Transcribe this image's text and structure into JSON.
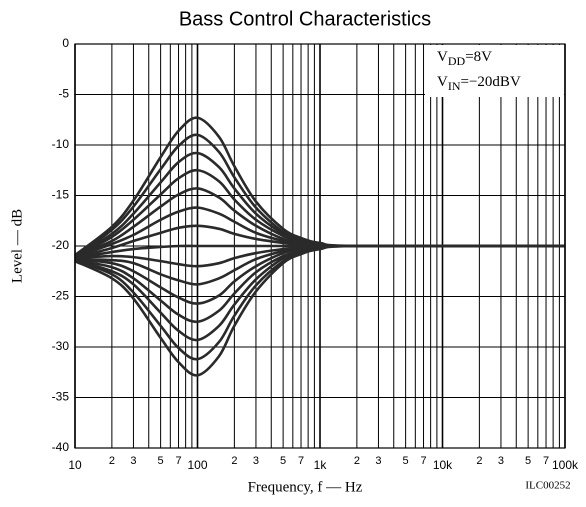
{
  "chart_data": {
    "type": "line",
    "title": "Bass Control Characteristics",
    "xlabel": "Frequency, f — Hz",
    "ylabel": "Level — dB",
    "figure_id": "ILC00252",
    "annotations": [
      [
        "V",
        "DD",
        "=8V"
      ],
      [
        "V",
        "IN",
        "=−20dBV"
      ]
    ],
    "xscale": "log",
    "xlim": [
      10,
      100000
    ],
    "ylim": [
      -40,
      0
    ],
    "xticks": [
      10,
      {
        "value": 20,
        "label": "2"
      },
      {
        "value": 30,
        "label": "3"
      },
      {
        "value": 50,
        "label": "5"
      },
      {
        "value": 70,
        "label": "7"
      },
      100,
      {
        "value": 200,
        "label": "2"
      },
      {
        "value": 300,
        "label": "3"
      },
      {
        "value": 500,
        "label": "5"
      },
      {
        "value": 700,
        "label": "7"
      },
      {
        "value": 1000,
        "label": "1k"
      },
      {
        "value": 2000,
        "label": "2"
      },
      {
        "value": 3000,
        "label": "3"
      },
      {
        "value": 5000,
        "label": "5"
      },
      {
        "value": 7000,
        "label": "7"
      },
      {
        "value": 10000,
        "label": "10k"
      },
      {
        "value": 20000,
        "label": "2"
      },
      {
        "value": 30000,
        "label": "3"
      },
      {
        "value": 50000,
        "label": "5"
      },
      {
        "value": 70000,
        "label": "7"
      },
      {
        "value": 100000,
        "label": "100k"
      }
    ],
    "xgrid_minor": [
      40,
      60,
      80,
      90,
      400,
      600,
      800,
      900,
      4000,
      6000,
      8000,
      9000,
      40000,
      60000,
      80000,
      90000
    ],
    "yticks": [
      0,
      -5,
      -10,
      -15,
      -20,
      -25,
      -30,
      -35,
      -40
    ],
    "grid": true,
    "color": "#2a2a2a",
    "x": [
      10,
      20,
      30,
      50,
      70,
      100,
      150,
      200,
      300,
      500,
      700,
      1000,
      2000,
      100000
    ],
    "series": [
      {
        "values": [
          -20.9,
          -18.1,
          -15.5,
          -11.2,
          -8.6,
          -7.3,
          -9.2,
          -12.1,
          -15.6,
          -18.3,
          -19.2,
          -19.7,
          -20,
          -20
        ]
      },
      {
        "values": [
          -21.0,
          -18.4,
          -16.1,
          -12.4,
          -10.1,
          -9.0,
          -10.7,
          -13.2,
          -16.2,
          -18.6,
          -19.3,
          -19.8,
          -20,
          -20
        ]
      },
      {
        "values": [
          -21.0,
          -18.8,
          -16.8,
          -13.7,
          -11.7,
          -10.8,
          -12.2,
          -14.3,
          -16.8,
          -18.8,
          -19.4,
          -19.8,
          -20,
          -20
        ]
      },
      {
        "values": [
          -21.1,
          -19.1,
          -17.4,
          -14.9,
          -13.3,
          -12.5,
          -13.6,
          -15.4,
          -17.4,
          -19.0,
          -19.6,
          -19.9,
          -20,
          -20
        ]
      },
      {
        "values": [
          -21.1,
          -19.5,
          -18.1,
          -16.1,
          -14.9,
          -14.3,
          -15.2,
          -16.5,
          -18.0,
          -19.3,
          -19.7,
          -19.9,
          -20,
          -20
        ]
      },
      {
        "values": [
          -21.1,
          -19.8,
          -18.9,
          -17.4,
          -16.6,
          -16.2,
          -16.8,
          -17.6,
          -18.7,
          -19.5,
          -19.8,
          -19.9,
          -20,
          -20
        ]
      },
      {
        "values": [
          -21.2,
          -20.2,
          -19.5,
          -18.7,
          -18.2,
          -18.0,
          -18.3,
          -18.8,
          -19.3,
          -19.7,
          -19.9,
          -20,
          -20,
          -20
        ]
      },
      {
        "values": [
          -21.2,
          -20.6,
          -20.3,
          -20.1,
          -20,
          -20,
          -20,
          -20,
          -20,
          -20,
          -20,
          -20,
          -20,
          -20
        ]
      },
      {
        "values": [
          -21.2,
          -21.0,
          -21.1,
          -21.5,
          -21.8,
          -22.0,
          -21.7,
          -21.2,
          -20.7,
          -20.3,
          -20.1,
          -20,
          -20,
          -20
        ]
      },
      {
        "values": [
          -21.3,
          -21.4,
          -21.7,
          -22.8,
          -23.4,
          -23.8,
          -23.2,
          -22.4,
          -21.3,
          -20.5,
          -20.2,
          -20.1,
          -20,
          -20
        ]
      },
      {
        "values": [
          -21.3,
          -21.7,
          -22.5,
          -24.1,
          -25.1,
          -25.7,
          -24.9,
          -23.5,
          -22.0,
          -20.7,
          -20.3,
          -20.1,
          -20,
          -20
        ]
      },
      {
        "values": [
          -21.4,
          -22.1,
          -23.2,
          -25.4,
          -26.8,
          -27.5,
          -26.4,
          -24.7,
          -22.6,
          -21.0,
          -20.5,
          -20.2,
          -20,
          -20
        ]
      },
      {
        "values": [
          -21.4,
          -22.5,
          -23.8,
          -26.6,
          -28.4,
          -29.3,
          -27.9,
          -25.8,
          -23.3,
          -21.2,
          -20.6,
          -20.2,
          -20,
          -20
        ]
      },
      {
        "values": [
          -21.4,
          -22.8,
          -24.6,
          -27.9,
          -30.1,
          -31.2,
          -29.5,
          -26.9,
          -23.9,
          -21.5,
          -20.7,
          -20.2,
          -20,
          -20
        ]
      },
      {
        "values": [
          -21.5,
          -23.2,
          -25.2,
          -29.1,
          -31.5,
          -32.8,
          -30.9,
          -27.9,
          -24.5,
          -21.7,
          -20.8,
          -20.3,
          -20,
          -20
        ]
      }
    ]
  }
}
